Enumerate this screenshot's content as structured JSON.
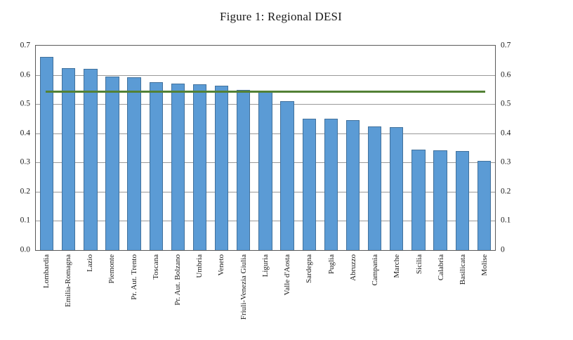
{
  "figure": {
    "title": "Figure 1: Regional DESI"
  },
  "chart_data": {
    "type": "bar",
    "title": "Figure 1: Regional DESI",
    "xlabel": "",
    "ylabel": "",
    "ylim": [
      0,
      0.7
    ],
    "ytick_step": 0.1,
    "yticks_left_labels": [
      "0.7",
      "0.6",
      "0.5",
      "0.4",
      "0.3",
      "0.2",
      "0.1",
      "0.0"
    ],
    "yticks_right_labels": [
      "0.7",
      "0.6",
      "0.5",
      "0.4",
      "0.3",
      "0.2",
      "0.1",
      "0"
    ],
    "grid": true,
    "legend_position": "none",
    "bar_color": "#5B9BD5",
    "bar_border_color": "#41719C",
    "categories": [
      "Lombardia",
      "Emilia-Romagna",
      "Lazio",
      "Piemonte",
      "Pr. Aut. Trento",
      "Toscana",
      "Pr. Aut. Bolzano",
      "Umbria",
      "Veneto",
      "Friuli-Venezia Giulia",
      "Liguria",
      "Valle d'Aosta",
      "Sardegna",
      "Puglia",
      "Abruzzo",
      "Campania",
      "Marche",
      "Sicilia",
      "Calabria",
      "Basilicata",
      "Molise"
    ],
    "values": [
      0.662,
      0.622,
      0.62,
      0.594,
      0.591,
      0.576,
      0.57,
      0.567,
      0.562,
      0.549,
      0.545,
      0.511,
      0.451,
      0.45,
      0.445,
      0.424,
      0.422,
      0.343,
      0.341,
      0.339,
      0.306
    ],
    "reference_line": {
      "value": 0.543,
      "color": "#538135"
    }
  }
}
